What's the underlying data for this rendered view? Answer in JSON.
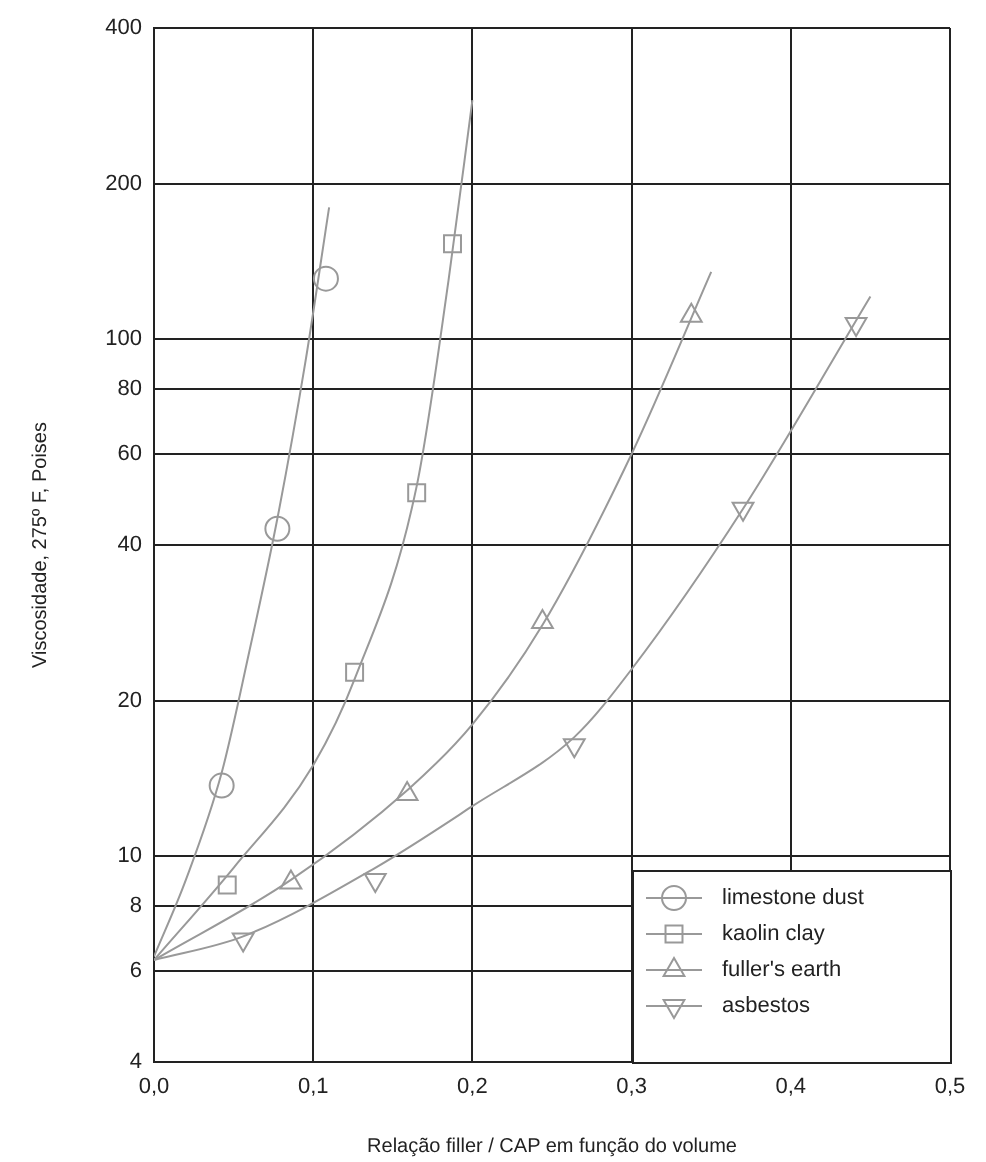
{
  "chart_data": {
    "type": "scatter",
    "xlabel": "Relação filler / CAP em função do volume",
    "ylabel": "Viscosidade, 275º F, Poises",
    "log": "y",
    "grid": true,
    "legend": "bottom right",
    "xlim": [
      0,
      0.5
    ],
    "xticks": [
      {
        "value": 0,
        "label": "0,0"
      },
      {
        "value": 0.1,
        "label": "0,1"
      },
      {
        "value": 0.2,
        "label": "0,2"
      },
      {
        "value": 0.3,
        "label": "0,3"
      },
      {
        "value": 0.4,
        "label": "0,4"
      },
      {
        "value": 0.5,
        "label": "0,5"
      }
    ],
    "ylim": [
      4,
      400
    ],
    "yticks": [
      4,
      6,
      8,
      10,
      20,
      40,
      60,
      80,
      100,
      200,
      400
    ],
    "series": [
      {
        "name": "limestone dust",
        "marker": "circle",
        "color": "#999999",
        "x": [
          0.0425,
          0.0775,
          0.108
        ],
        "values": [
          13.7,
          43,
          131
        ]
      },
      {
        "name": "kaolin clay",
        "marker": "square",
        "color": "#999999",
        "x": [
          0.046,
          0.126,
          0.165,
          0.1875
        ],
        "values": [
          8.8,
          22.7,
          50.5,
          153
        ]
      },
      {
        "name": "fuller's earth",
        "marker": "triangle",
        "color": "#999999",
        "x": [
          0.086,
          0.159,
          0.244,
          0.3375
        ],
        "values": [
          8.9,
          13.2,
          28.4,
          111
        ]
      },
      {
        "name": "asbestos",
        "marker": "triangle_down",
        "color": "#999999",
        "x": [
          0.056,
          0.139,
          0.264,
          0.37,
          0.441
        ],
        "values": [
          6.9,
          9.0,
          16.4,
          47,
          107
        ]
      },
      {
        "type": "line",
        "marker": "none",
        "color": "#999999",
        "x": [
          0,
          0.02,
          0.0425,
          0.06,
          0.0775,
          0.095,
          0.11
        ],
        "values": [
          6.4,
          9,
          14.5,
          25,
          45,
          90,
          180
        ]
      },
      {
        "type": "line",
        "marker": "none",
        "color": "#999999",
        "x": [
          0,
          0.05,
          0.1,
          0.126,
          0.165,
          0.185,
          0.2
        ],
        "values": [
          6.3,
          9.5,
          15,
          22,
          52,
          130,
          290
        ]
      },
      {
        "type": "line",
        "marker": "none",
        "color": "#999999",
        "x": [
          0,
          0.086,
          0.16,
          0.2,
          0.244,
          0.3,
          0.35
        ],
        "values": [
          6.3,
          9,
          13.5,
          18,
          28,
          60,
          135
        ]
      },
      {
        "type": "line",
        "marker": "none",
        "color": "#999999",
        "x": [
          0,
          0.056,
          0.139,
          0.2,
          0.264,
          0.3,
          0.37,
          0.45
        ],
        "values": [
          6.3,
          7,
          9.5,
          12.5,
          17,
          23,
          47,
          121
        ]
      }
    ]
  }
}
